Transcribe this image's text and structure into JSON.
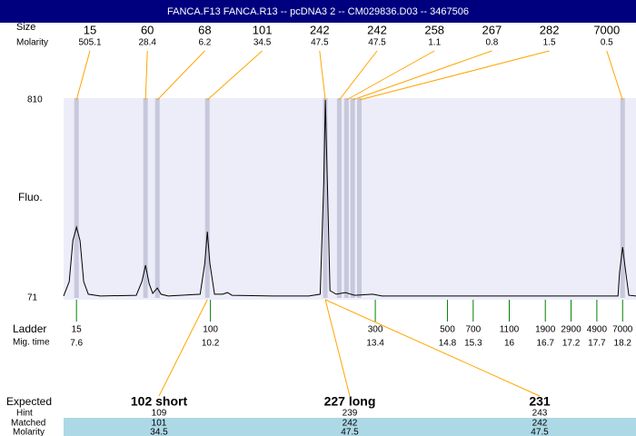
{
  "header": {
    "title": "FANCA.F13 FANCA.R13 -- pcDNA3 2 -- CM029836.D03 -- 3467506"
  },
  "row_labels": {
    "size": "Size",
    "molarity": "Molarity",
    "fluo": "Fluo.",
    "ladder": "Ladder",
    "mig_time": "Mig. time",
    "expected": "Expected",
    "hint": "Hint",
    "matched": "Matched",
    "molarity_bottom": "Molarity"
  },
  "peaks": {
    "size": [
      15,
      60,
      68,
      101,
      242,
      242,
      258,
      267,
      282,
      7000
    ],
    "molarity": [
      {
        "value": 505.1,
        "label": "505.1"
      },
      {
        "value": 28.4,
        "label": "28.4"
      },
      {
        "value": 6.2,
        "label": "6.2"
      },
      {
        "value": 34.5,
        "label": "34.5"
      },
      {
        "value": 47.5,
        "label": "47.5"
      },
      {
        "value": 47.5,
        "label": "47.5"
      },
      {
        "value": 1.1,
        "label": "1.1"
      },
      {
        "value": 0.8,
        "label": "0.8"
      },
      {
        "value": 1.5,
        "label": "1.5"
      },
      {
        "value": 0.5,
        "label": "0.5"
      }
    ],
    "time": [
      7.6,
      8.94,
      9.17,
      10.14,
      12.43,
      12.7,
      12.84,
      12.96,
      13.09,
      18.2
    ]
  },
  "trace": {
    "xlim": [
      7.35,
      18.46
    ],
    "ylim": [
      71,
      810
    ],
    "yticks": [
      71,
      810
    ],
    "color": "#000000",
    "x": [
      7.35,
      7.46,
      7.53,
      7.6,
      7.67,
      7.74,
      7.83,
      8.06,
      8.76,
      8.87,
      8.94,
      9.01,
      9.08,
      9.17,
      9.24,
      9.38,
      10.0,
      10.09,
      10.14,
      10.19,
      10.28,
      10.44,
      10.53,
      10.62,
      11.41,
      12.11,
      12.33,
      12.4,
      12.43,
      12.47,
      12.52,
      12.64,
      12.82,
      13.0,
      13.35,
      13.53,
      18.11,
      18.14,
      18.2,
      18.25,
      18.32,
      18.46
    ],
    "y": [
      78,
      132,
      285,
      335,
      285,
      132,
      85,
      78,
      81,
      132,
      193,
      125,
      88,
      108,
      85,
      78,
      85,
      200,
      318,
      200,
      85,
      85,
      91,
      81,
      78,
      78,
      85,
      505,
      810,
      505,
      98,
      85,
      91,
      81,
      85,
      78,
      78,
      166,
      261,
      183,
      81,
      78
    ]
  },
  "ladder": {
    "size": [
      15,
      100,
      300,
      500,
      700,
      1100,
      1900,
      2900,
      4900,
      7000
    ],
    "time": [
      7.6,
      10.2,
      13.4,
      14.8,
      15.3,
      16,
      16.7,
      17.2,
      17.7,
      18.2
    ]
  },
  "expected": {
    "label": [
      "102 short",
      "227 long",
      "231"
    ],
    "hint": [
      109,
      239,
      243
    ],
    "matched": [
      101,
      242,
      242
    ],
    "molarity": [
      {
        "value": 34.5,
        "label": "34.5"
      },
      {
        "value": 47.5,
        "label": "47.5"
      },
      {
        "value": 47.5,
        "label": "47.5"
      }
    ]
  }
}
